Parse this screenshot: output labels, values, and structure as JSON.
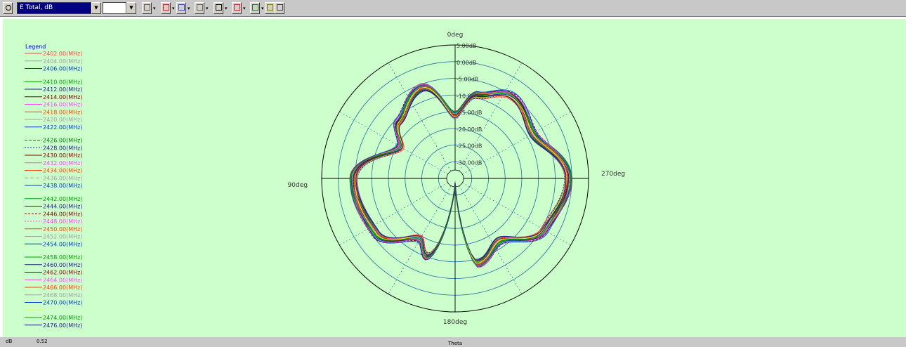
{
  "toolbar": {
    "quantity_value": "E Total, dB",
    "second_value": "",
    "buttons": [
      {
        "name": "plot-type-icon"
      },
      {
        "name": "plot-view-icon"
      },
      {
        "name": "series-color-icon"
      },
      {
        "name": "legend-list-icon"
      },
      {
        "name": "polar-grid-icon"
      },
      {
        "name": "chart-line-icon"
      },
      {
        "name": "axis-scale-icon"
      },
      {
        "name": "copy-icon"
      },
      {
        "name": "print-icon"
      }
    ]
  },
  "status": {
    "unit": "dB",
    "value": "0.52",
    "x_label": "Theta"
  },
  "chart_data": {
    "type": "polar-line",
    "legend_title": "Legend",
    "angle_labels": {
      "top": "0deg",
      "left": "90deg",
      "right": "270deg",
      "bottom": "180deg"
    },
    "radial_labels": [
      "5.00dB",
      "0.00dB",
      "-5.00dB",
      "-10.00dB",
      "-15.00dB",
      "-20.00dB",
      "-25.00dB",
      "-30.00dB"
    ],
    "r_range": [
      -35,
      5
    ],
    "angle_direction": "counter-clockwise from top",
    "pattern_db_at_theta": [
      {
        "theta": 0,
        "db": -16
      },
      {
        "theta": 20,
        "db": -6
      },
      {
        "theta": 45,
        "db": -11
      },
      {
        "theta": 60,
        "db": -16
      },
      {
        "theta": 90,
        "db": -4.5
      },
      {
        "theta": 125,
        "db": -6
      },
      {
        "theta": 150,
        "db": -14
      },
      {
        "theta": 160,
        "db": -10
      },
      {
        "theta": 180,
        "db": -33
      },
      {
        "theta": 195,
        "db": -8.5
      },
      {
        "theta": 215,
        "db": -12
      },
      {
        "theta": 240,
        "db": -4
      },
      {
        "theta": 270,
        "db": -1
      },
      {
        "theta": 300,
        "db": -8
      },
      {
        "theta": 325,
        "db": -5
      },
      {
        "theta": 345,
        "db": -9
      }
    ],
    "series": [
      {
        "name": "2402.00(MHz)",
        "color": "#ff4040",
        "dash": "",
        "group": 0
      },
      {
        "name": "2404.00(MHz)",
        "color": "#a0a0a0",
        "dash": "",
        "group": 0
      },
      {
        "name": "2406.00(MHz)",
        "color": "#0040c0",
        "dash": "",
        "group": 0
      },
      {
        "name": "2410.00(MHz)",
        "color": "#00a000",
        "dash": "",
        "group": 1
      },
      {
        "name": "2412.00(MHz)",
        "color": "#202080",
        "dash": "",
        "group": 1
      },
      {
        "name": "2414.00(MHz)",
        "color": "#800000",
        "dash": "",
        "group": 1
      },
      {
        "name": "2416.00(MHz)",
        "color": "#ff40ff",
        "dash": "",
        "group": 1
      },
      {
        "name": "2418.00(MHz)",
        "color": "#ff4000",
        "dash": "",
        "group": 1
      },
      {
        "name": "2420.00(MHz)",
        "color": "#a0a0a0",
        "dash": "",
        "group": 1
      },
      {
        "name": "2422.00(MHz)",
        "color": "#0040c0",
        "dash": "",
        "group": 1
      },
      {
        "name": "2426.00(MHz)",
        "color": "#008000",
        "dash": "4,2",
        "group": 2
      },
      {
        "name": "2428.00(MHz)",
        "color": "#202080",
        "dash": "2,2",
        "group": 2
      },
      {
        "name": "2430.00(MHz)",
        "color": "#800000",
        "dash": "",
        "group": 2
      },
      {
        "name": "2432.00(MHz)",
        "color": "#ff40ff",
        "dash": "",
        "group": 2
      },
      {
        "name": "2434.00(MHz)",
        "color": "#ff4000",
        "dash": "",
        "group": 2
      },
      {
        "name": "2436.00(MHz)",
        "color": "#a0a0a0",
        "dash": "5,3",
        "group": 2
      },
      {
        "name": "2438.00(MHz)",
        "color": "#0040c0",
        "dash": "",
        "group": 2
      },
      {
        "name": "2442.00(MHz)",
        "color": "#00a000",
        "dash": "",
        "group": 3
      },
      {
        "name": "2444.00(MHz)",
        "color": "#202080",
        "dash": "",
        "group": 3
      },
      {
        "name": "2446.00(MHz)",
        "color": "#800000",
        "dash": "3,2",
        "group": 3
      },
      {
        "name": "2448.00(MHz)",
        "color": "#ff40ff",
        "dash": "2,2",
        "group": 3
      },
      {
        "name": "2450.00(MHz)",
        "color": "#ff4000",
        "dash": "",
        "group": 3
      },
      {
        "name": "2452.00(MHz)",
        "color": "#a0a0a0",
        "dash": "",
        "group": 3
      },
      {
        "name": "2454.00(MHz)",
        "color": "#0040c0",
        "dash": "",
        "group": 3
      },
      {
        "name": "2458.00(MHz)",
        "color": "#00a000",
        "dash": "",
        "group": 4
      },
      {
        "name": "2460.00(MHz)",
        "color": "#202080",
        "dash": "",
        "group": 4
      },
      {
        "name": "2462.00(MHz)",
        "color": "#800000",
        "dash": "",
        "group": 4
      },
      {
        "name": "2464.00(MHz)",
        "color": "#ff40ff",
        "dash": "",
        "group": 4
      },
      {
        "name": "2466.00(MHz)",
        "color": "#ff4000",
        "dash": "",
        "group": 4
      },
      {
        "name": "2468.00(MHz)",
        "color": "#a0a0a0",
        "dash": "",
        "group": 4
      },
      {
        "name": "2470.00(MHz)",
        "color": "#0040c0",
        "dash": "",
        "group": 4
      },
      {
        "name": "",
        "color": "#ffff00",
        "dash": "",
        "group": 4
      },
      {
        "name": "2474.00(MHz)",
        "color": "#00a000",
        "dash": "",
        "group": 4
      },
      {
        "name": "2476.00(MHz)",
        "color": "#202080",
        "dash": "",
        "group": 4
      }
    ]
  }
}
